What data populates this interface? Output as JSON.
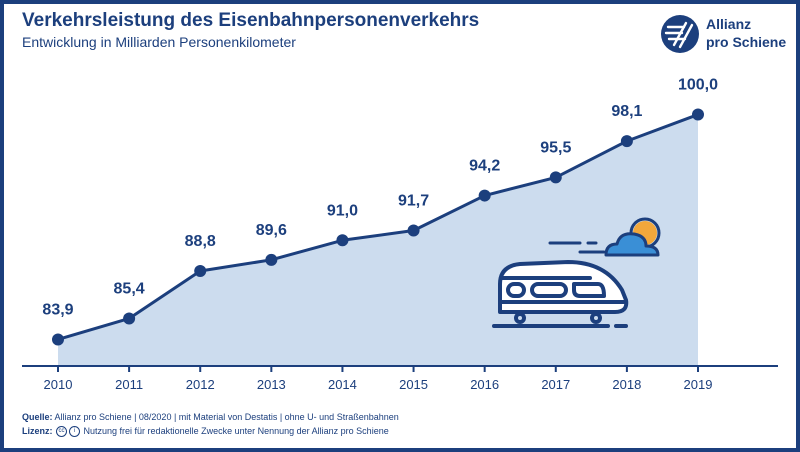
{
  "header": {
    "title": "Verkehrsleistung des Eisenbahnpersonenverkehrs",
    "subtitle": "Entwicklung in Milliarden Personenkilometer"
  },
  "logo": {
    "line1": "Allianz",
    "line2": "pro Schiene"
  },
  "colors": {
    "primary": "#1c3f7d",
    "area": "#ccdcee",
    "sun": "#f2a73b",
    "cloud": "#3a8fd6"
  },
  "chart_data": {
    "type": "area",
    "title": "Verkehrsleistung des Eisenbahnpersonenverkehrs",
    "subtitle": "Entwicklung in Milliarden Personenkilometer",
    "x": [
      "2010",
      "2011",
      "2012",
      "2013",
      "2014",
      "2015",
      "2016",
      "2017",
      "2018",
      "2019"
    ],
    "values": [
      83.9,
      85.4,
      88.8,
      89.6,
      91.0,
      91.7,
      94.2,
      95.5,
      98.1,
      100.0
    ],
    "labels": [
      "83,9",
      "85,4",
      "88,8",
      "89,6",
      "91,0",
      "91,7",
      "94,2",
      "95,5",
      "98,1",
      "100,0"
    ],
    "xlabel": "",
    "ylabel": "",
    "ylim": [
      82,
      101.9
    ],
    "grid": false,
    "legend": "none"
  },
  "footer": {
    "source_label": "Quelle:",
    "source_text": "Allianz pro Schiene | 08/2020 | mit Material von Destatis | ohne U- und Straßenbahnen",
    "license_label": "Lizenz:",
    "license_text": "Nutzung frei für redaktionelle Zwecke unter Nennung der Allianz pro Schiene"
  },
  "icons": [
    "logo-icon",
    "train-icon",
    "cloud-sun-icon",
    "cc-icon",
    "by-icon"
  ]
}
